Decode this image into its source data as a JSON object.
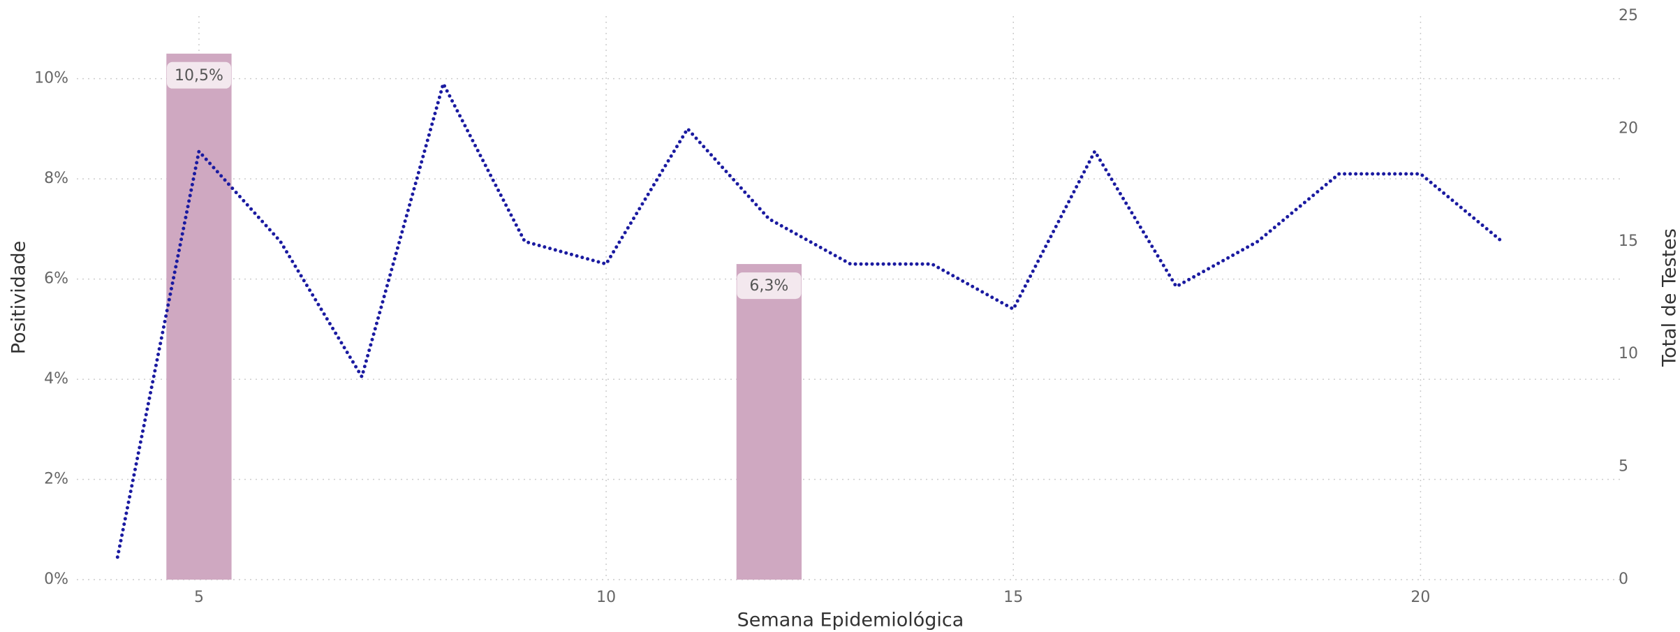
{
  "chart_data": {
    "type": "combo",
    "x": [
      4,
      5,
      6,
      7,
      8,
      9,
      10,
      11,
      12,
      13,
      14,
      15,
      16,
      17,
      18,
      19,
      20,
      21
    ],
    "xlim": [
      3.5,
      22.5
    ],
    "xticks": [
      5,
      10,
      15,
      20
    ],
    "xlabel": "Semana Epidemiológica",
    "ylabel": "Positividade",
    "y2label": "Total de Testes",
    "ylim": [
      0,
      11.25
    ],
    "yticks": [
      {
        "value": 0,
        "label": "0%"
      },
      {
        "value": 2,
        "label": "2%"
      },
      {
        "value": 4,
        "label": "4%"
      },
      {
        "value": 6,
        "label": "6%"
      },
      {
        "value": 8,
        "label": "8%"
      },
      {
        "value": 10,
        "label": "10%"
      }
    ],
    "y2lim": [
      0,
      25
    ],
    "y2ticks": [
      0,
      5,
      10,
      15,
      20,
      25
    ],
    "grid": true,
    "series": [
      {
        "type": "bar",
        "axis": "y",
        "color": "#cfa8c1",
        "values": [
          null,
          10.5,
          null,
          null,
          null,
          null,
          null,
          null,
          6.3,
          null,
          null,
          null,
          null,
          null,
          null,
          null,
          null,
          null
        ],
        "value_labels": [
          null,
          "10,5%",
          null,
          null,
          null,
          null,
          null,
          null,
          "6,3%",
          null,
          null,
          null,
          null,
          null,
          null,
          null,
          null,
          null
        ]
      },
      {
        "type": "line",
        "axis": "y2",
        "color": "#1a1aa0",
        "values": [
          1,
          19,
          15,
          9,
          22,
          15,
          14,
          20,
          16,
          14,
          14,
          12,
          19,
          13,
          15,
          18,
          18,
          15
        ]
      }
    ]
  }
}
